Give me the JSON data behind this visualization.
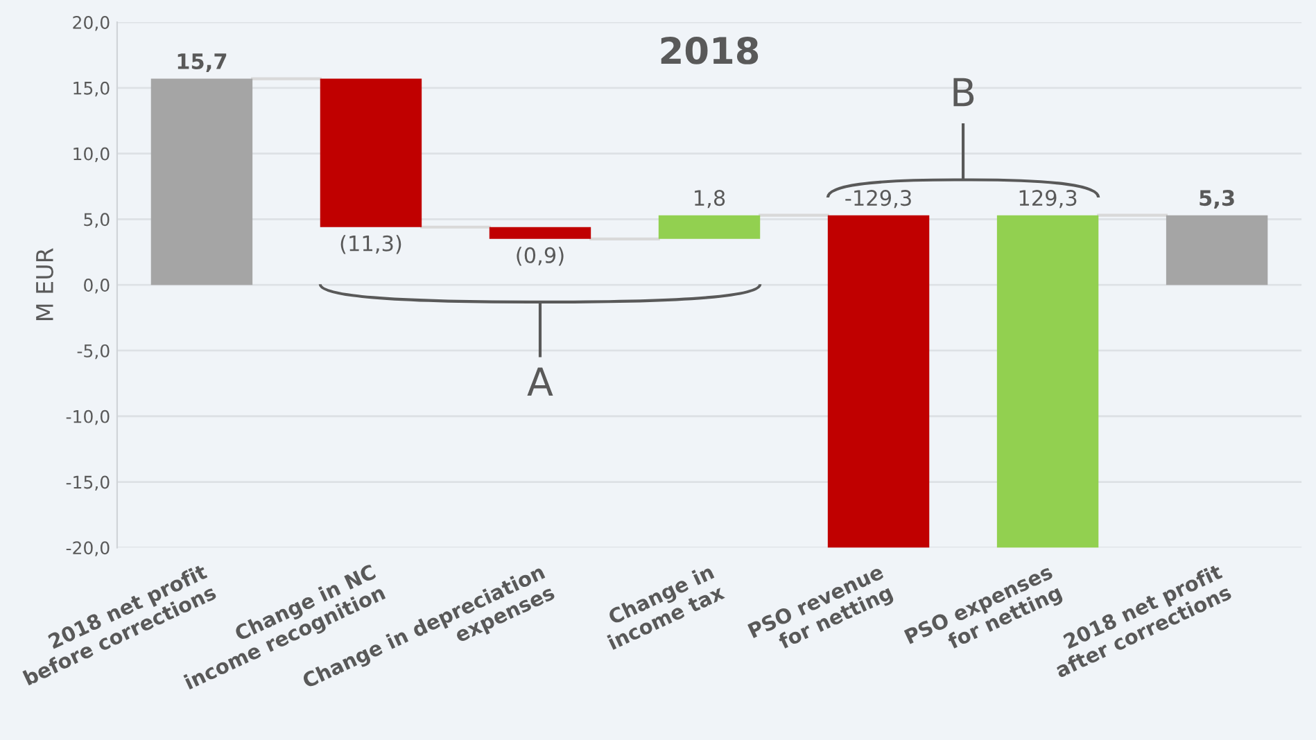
{
  "chart_data": {
    "type": "bar",
    "title": "2018",
    "ylabel": "M EUR",
    "categories": [
      "2018 net profit\nbefore corrections",
      "Change in NC\nincome recognition",
      "Change in depreciation\nexpenses",
      "Change in\nincome tax",
      "PSO revenue\nfor netting",
      "PSO expenses\nfor netting",
      "2018 net profit\nafter corrections"
    ],
    "values": [
      15.7,
      -11.3,
      -0.9,
      1.8,
      -129.3,
      129.3,
      5.3
    ],
    "base": [
      0,
      15.7,
      4.4,
      3.5,
      5.3,
      -124.0,
      0
    ],
    "colors": [
      "#a5a5a5",
      "#c00000",
      "#c00000",
      "#92d050",
      "#c00000",
      "#92d050",
      "#a5a5a5"
    ],
    "value_labels": [
      "15,7",
      "(11,3)",
      "(0,9)",
      "1,8",
      "-129,3",
      "129,3",
      "5,3"
    ],
    "annotations": [
      "A",
      "B"
    ],
    "ylim": [
      -20,
      20
    ],
    "yticks": [
      {
        "value": -20,
        "label": "-20,0"
      },
      {
        "value": -15,
        "label": "-15,0"
      },
      {
        "value": -10,
        "label": "-10,0"
      },
      {
        "value": -5,
        "label": "-5,0"
      },
      {
        "value": 0,
        "label": "0,0"
      },
      {
        "value": 5,
        "label": "5,0"
      },
      {
        "value": 10,
        "label": "10,0"
      },
      {
        "value": 15,
        "label": "15,0"
      },
      {
        "value": 20,
        "label": "20,0"
      }
    ],
    "grid": "y"
  }
}
